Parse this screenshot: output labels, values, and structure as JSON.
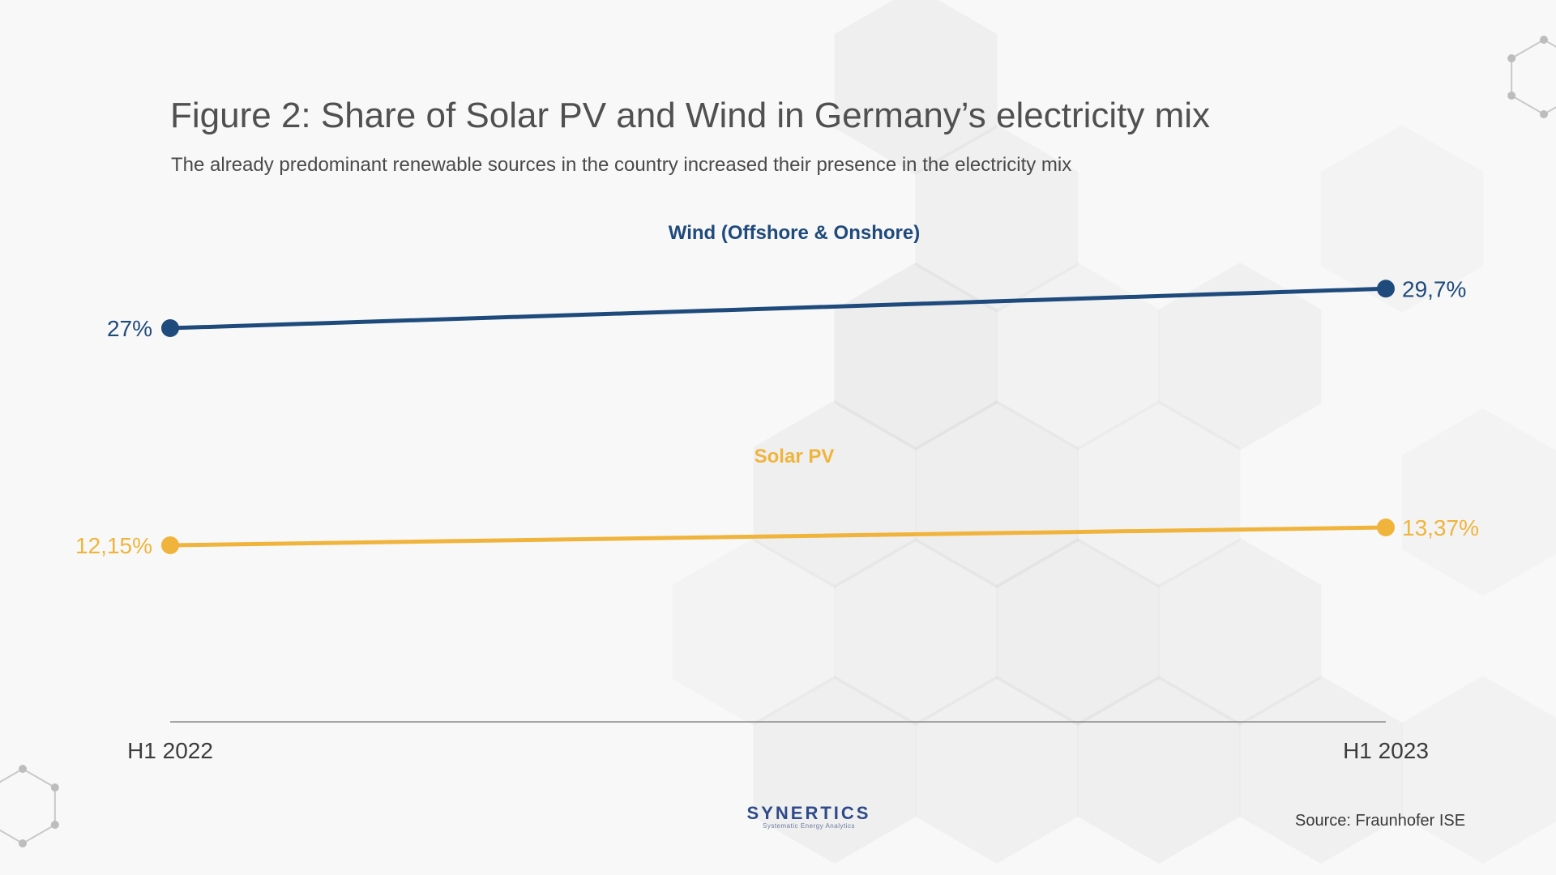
{
  "header": {
    "title": "Figure 2: Share of Solar PV and Wind in Germany’s electricity mix",
    "subtitle": "The already predominant renewable sources in the country increased their presence in the electricity mix"
  },
  "footer": {
    "logo_name": "SYNERTICS",
    "logo_tagline": "Systematic Energy Analytics",
    "source": "Source: Fraunhofer ISE"
  },
  "colors": {
    "wind": "#1f4a7c",
    "solar": "#f0b43c",
    "axis": "#8a8a8a",
    "tick_label": "#3c3c3c"
  },
  "chart_data": {
    "type": "line",
    "title": "Figure 2: Share of Solar PV and Wind in Germany’s electricity mix",
    "subtitle": "The already predominant renewable sources in the country increased their presence in the electricity mix",
    "x": [
      "H1 2022",
      "H1 2023"
    ],
    "ylabel": "",
    "xlabel": "",
    "grid": false,
    "series": [
      {
        "name": "Wind (Offshore & Onshore)",
        "values": [
          27,
          29.7
        ],
        "labels": [
          "27%",
          "29,7%"
        ],
        "color": "#1f4a7c"
      },
      {
        "name": "Solar PV",
        "values": [
          12.15,
          13.37
        ],
        "labels": [
          "12,15%",
          "13,37%"
        ],
        "color": "#f0b43c"
      }
    ]
  }
}
